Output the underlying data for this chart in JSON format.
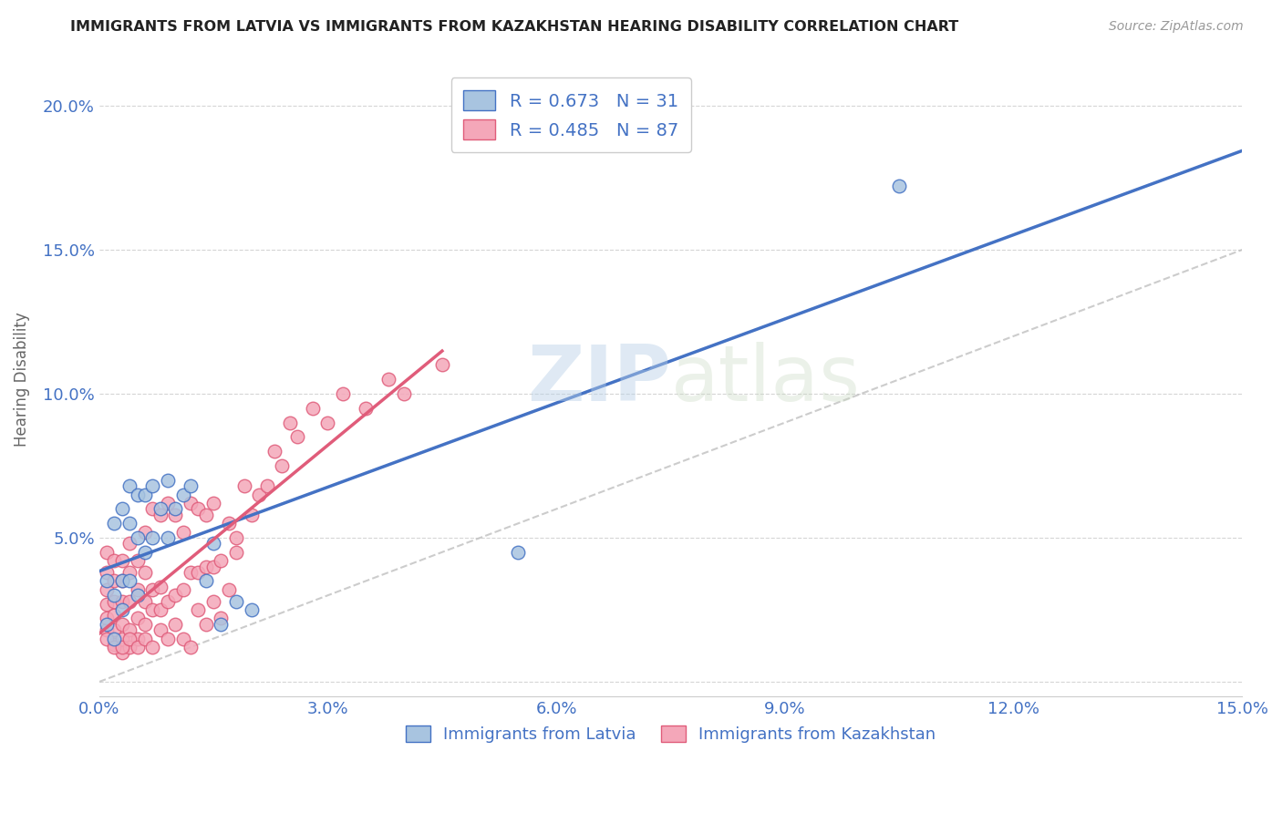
{
  "title": "IMMIGRANTS FROM LATVIA VS IMMIGRANTS FROM KAZAKHSTAN HEARING DISABILITY CORRELATION CHART",
  "source": "Source: ZipAtlas.com",
  "ylabel": "Hearing Disability",
  "xlim": [
    0.0,
    0.15
  ],
  "ylim": [
    -0.005,
    0.215
  ],
  "x_ticks": [
    0.0,
    0.03,
    0.06,
    0.09,
    0.12,
    0.15
  ],
  "y_ticks": [
    0.0,
    0.05,
    0.1,
    0.15,
    0.2
  ],
  "x_tick_labels": [
    "0.0%",
    "3.0%",
    "6.0%",
    "9.0%",
    "12.0%",
    "15.0%"
  ],
  "y_tick_labels": [
    "",
    "5.0%",
    "10.0%",
    "15.0%",
    "20.0%"
  ],
  "legend_R_latvia": "R = 0.673",
  "legend_N_latvia": "N = 31",
  "legend_R_kazakhstan": "R = 0.485",
  "legend_N_kazakhstan": "N = 87",
  "color_latvia": "#a8c4e0",
  "color_kazakhstan": "#f4a7b9",
  "color_line_latvia": "#4472c4",
  "color_line_kazakhstan": "#e05c7a",
  "color_diag": "#c0c0c0",
  "watermark_zip": "ZIP",
  "watermark_atlas": "atlas",
  "latvia_scatter_x": [
    0.001,
    0.001,
    0.002,
    0.002,
    0.002,
    0.003,
    0.003,
    0.003,
    0.004,
    0.004,
    0.004,
    0.005,
    0.005,
    0.005,
    0.006,
    0.006,
    0.007,
    0.007,
    0.008,
    0.009,
    0.009,
    0.01,
    0.011,
    0.012,
    0.014,
    0.015,
    0.016,
    0.018,
    0.02,
    0.055,
    0.105
  ],
  "latvia_scatter_y": [
    0.02,
    0.035,
    0.015,
    0.03,
    0.055,
    0.025,
    0.035,
    0.06,
    0.035,
    0.055,
    0.068,
    0.03,
    0.05,
    0.065,
    0.045,
    0.065,
    0.05,
    0.068,
    0.06,
    0.05,
    0.07,
    0.06,
    0.065,
    0.068,
    0.035,
    0.048,
    0.02,
    0.028,
    0.025,
    0.045,
    0.172
  ],
  "kazakhstan_scatter_x": [
    0.001,
    0.001,
    0.001,
    0.001,
    0.001,
    0.001,
    0.002,
    0.002,
    0.002,
    0.002,
    0.002,
    0.002,
    0.003,
    0.003,
    0.003,
    0.003,
    0.003,
    0.003,
    0.004,
    0.004,
    0.004,
    0.004,
    0.004,
    0.005,
    0.005,
    0.005,
    0.005,
    0.006,
    0.006,
    0.006,
    0.006,
    0.007,
    0.007,
    0.007,
    0.008,
    0.008,
    0.008,
    0.009,
    0.009,
    0.01,
    0.01,
    0.011,
    0.011,
    0.012,
    0.012,
    0.013,
    0.013,
    0.014,
    0.014,
    0.015,
    0.015,
    0.016,
    0.017,
    0.018,
    0.019,
    0.02,
    0.021,
    0.022,
    0.023,
    0.024,
    0.025,
    0.026,
    0.028,
    0.03,
    0.032,
    0.035,
    0.038,
    0.04,
    0.045,
    0.001,
    0.002,
    0.003,
    0.004,
    0.005,
    0.006,
    0.007,
    0.008,
    0.009,
    0.01,
    0.011,
    0.012,
    0.013,
    0.014,
    0.015,
    0.016,
    0.017,
    0.018
  ],
  "kazakhstan_scatter_y": [
    0.018,
    0.022,
    0.027,
    0.032,
    0.038,
    0.045,
    0.013,
    0.018,
    0.023,
    0.028,
    0.035,
    0.042,
    0.01,
    0.015,
    0.02,
    0.028,
    0.035,
    0.042,
    0.012,
    0.018,
    0.028,
    0.038,
    0.048,
    0.015,
    0.022,
    0.032,
    0.042,
    0.02,
    0.028,
    0.038,
    0.052,
    0.025,
    0.032,
    0.06,
    0.025,
    0.033,
    0.058,
    0.028,
    0.062,
    0.03,
    0.058,
    0.032,
    0.052,
    0.038,
    0.062,
    0.038,
    0.06,
    0.04,
    0.058,
    0.04,
    0.062,
    0.042,
    0.055,
    0.05,
    0.068,
    0.058,
    0.065,
    0.068,
    0.08,
    0.075,
    0.09,
    0.085,
    0.095,
    0.09,
    0.1,
    0.095,
    0.105,
    0.1,
    0.11,
    0.015,
    0.012,
    0.012,
    0.015,
    0.012,
    0.015,
    0.012,
    0.018,
    0.015,
    0.02,
    0.015,
    0.012,
    0.025,
    0.02,
    0.028,
    0.022,
    0.032,
    0.045
  ],
  "background_color": "#ffffff",
  "grid_color": "#d5d5d5"
}
